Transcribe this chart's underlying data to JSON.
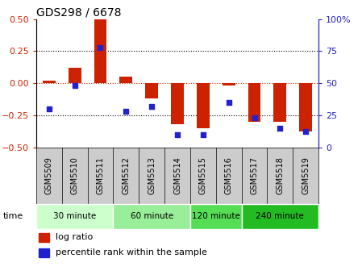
{
  "title": "GDS298 / 6678",
  "samples": [
    "GSM5509",
    "GSM5510",
    "GSM5511",
    "GSM5512",
    "GSM5513",
    "GSM5514",
    "GSM5515",
    "GSM5516",
    "GSM5517",
    "GSM5518",
    "GSM5519"
  ],
  "log_ratio": [
    0.02,
    0.12,
    0.5,
    0.05,
    -0.12,
    -0.32,
    -0.35,
    -0.02,
    -0.3,
    -0.3,
    -0.38
  ],
  "percentile": [
    0.3,
    0.48,
    0.78,
    0.28,
    0.32,
    0.1,
    0.1,
    0.35,
    0.23,
    0.15,
    0.12
  ],
  "groups": [
    {
      "label": "30 minute",
      "start": 0,
      "end": 2,
      "color": "#ccffcc"
    },
    {
      "label": "60 minute",
      "start": 3,
      "end": 5,
      "color": "#99ee99"
    },
    {
      "label": "120 minute",
      "start": 6,
      "end": 7,
      "color": "#55dd55"
    },
    {
      "label": "240 minute",
      "start": 8,
      "end": 10,
      "color": "#22bb22"
    }
  ],
  "bar_color": "#cc2200",
  "dot_color": "#2222cc",
  "ylim": [
    -0.5,
    0.5
  ],
  "y2lim": [
    0,
    100
  ],
  "yticks_left": [
    -0.5,
    -0.25,
    0,
    0.25,
    0.5
  ],
  "yticks_right": [
    0,
    25,
    50,
    75,
    100
  ],
  "hlines_dotted": [
    -0.25,
    0.25
  ],
  "hline_red": 0,
  "left_axis_color": "#cc2200",
  "right_axis_color": "#2222cc",
  "sample_bg_color": "#cccccc",
  "time_label": "time",
  "legend_bar_label": "log ratio",
  "legend_dot_label": "percentile rank within the sample"
}
